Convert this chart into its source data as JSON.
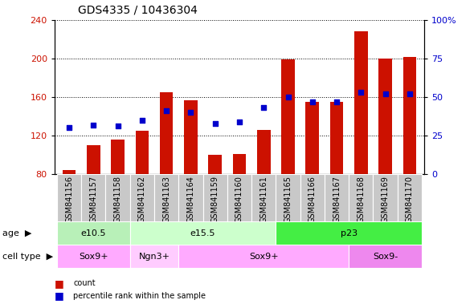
{
  "title": "GDS4335 / 10436304",
  "samples": [
    "GSM841156",
    "GSM841157",
    "GSM841158",
    "GSM841162",
    "GSM841163",
    "GSM841164",
    "GSM841159",
    "GSM841160",
    "GSM841161",
    "GSM841165",
    "GSM841166",
    "GSM841167",
    "GSM841168",
    "GSM841169",
    "GSM841170"
  ],
  "count_values": [
    84,
    110,
    116,
    125,
    165,
    157,
    100,
    101,
    126,
    199,
    155,
    155,
    228,
    200,
    202
  ],
  "percentile_values": [
    30,
    32,
    31,
    35,
    41,
    40,
    33,
    34,
    43,
    50,
    47,
    47,
    53,
    52,
    52
  ],
  "ylim_left": [
    80,
    240
  ],
  "ylim_right": [
    0,
    100
  ],
  "yticks_left": [
    80,
    120,
    160,
    200,
    240
  ],
  "yticks_right": [
    0,
    25,
    50,
    75,
    100
  ],
  "age_groups": [
    {
      "label": "e10.5",
      "start": 0,
      "end": 3,
      "color": "#b8f0b8"
    },
    {
      "label": "e15.5",
      "start": 3,
      "end": 9,
      "color": "#ccffcc"
    },
    {
      "label": "p23",
      "start": 9,
      "end": 15,
      "color": "#44ee44"
    }
  ],
  "cell_type_groups": [
    {
      "label": "Sox9+",
      "start": 0,
      "end": 3,
      "color": "#ffaaff"
    },
    {
      "label": "Ngn3+",
      "start": 3,
      "end": 5,
      "color": "#ffccff"
    },
    {
      "label": "Sox9+",
      "start": 5,
      "end": 12,
      "color": "#ffaaff"
    },
    {
      "label": "Sox9-",
      "start": 12,
      "end": 15,
      "color": "#ee88ee"
    }
  ],
  "bar_color": "#cc1100",
  "dot_color": "#0000cc",
  "title_fontsize": 10,
  "tick_fontsize": 7,
  "label_fontsize": 8,
  "background_color": "#ffffff",
  "xticklabel_bg": "#c8c8c8"
}
